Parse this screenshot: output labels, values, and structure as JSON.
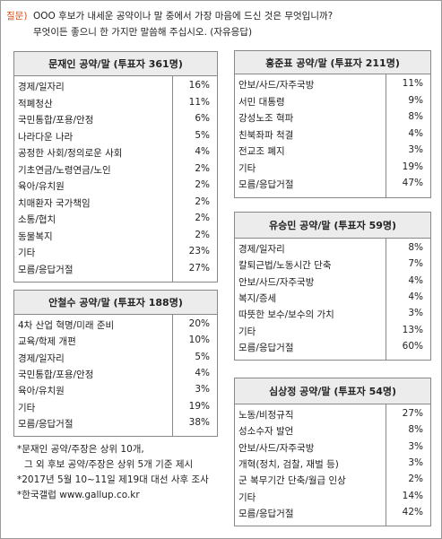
{
  "question": {
    "label": "질문)",
    "lines": [
      "OOO 후보가 내세운 공약이나 말 중에서 가장 마음에 드신 것은 무엇입니까?",
      "무엇이든 좋으니 한 가지만 말씀해 주십시오. (자유응답)"
    ]
  },
  "tables": [
    {
      "title": "문재인 공약/말 (투표자 361명)",
      "rows": [
        [
          "경제/일자리",
          "16%"
        ],
        [
          "적폐청산",
          "11%"
        ],
        [
          "국민통합/포용/안정",
          "6%"
        ],
        [
          "나라다운 나라",
          "5%"
        ],
        [
          "공정한 사회/정의로운 사회",
          "4%"
        ],
        [
          "기초연금/노령연금/노인",
          "2%"
        ],
        [
          "육아/유치원",
          "2%"
        ],
        [
          "치매환자 국가책임",
          "2%"
        ],
        [
          "소통/협치",
          "2%"
        ],
        [
          "동물복지",
          "2%"
        ],
        [
          "기타",
          "23%"
        ],
        [
          "모름/응답거절",
          "27%"
        ]
      ]
    },
    {
      "title": "안철수 공약/말 (투표자 188명)",
      "rows": [
        [
          "4차 산업 혁명/미래 준비",
          "20%"
        ],
        [
          "교육/학제 개편",
          "10%"
        ],
        [
          "경제/일자리",
          "5%"
        ],
        [
          "국민통합/포용/안정",
          "4%"
        ],
        [
          "육아/유치원",
          "3%"
        ],
        [
          "기타",
          "19%"
        ],
        [
          "모름/응답거절",
          "38%"
        ]
      ]
    },
    {
      "title": "홍준표 공약/말 (투표자 211명)",
      "rows": [
        [
          "안보/사드/자주국방",
          "11%"
        ],
        [
          "서민 대통령",
          "9%"
        ],
        [
          "강성노조 혁파",
          "8%"
        ],
        [
          "친북좌파 척결",
          "4%"
        ],
        [
          "전교조 폐지",
          "3%"
        ],
        [
          "기타",
          "19%"
        ],
        [
          "모름/응답거절",
          "47%"
        ]
      ]
    },
    {
      "title": "유승민 공약/말 (투표자 59명)",
      "rows": [
        [
          "경제/일자리",
          "8%"
        ],
        [
          "칼퇴근법/노동시간 단축",
          "7%"
        ],
        [
          "안보/사드/자주국방",
          "4%"
        ],
        [
          "복지/증세",
          "4%"
        ],
        [
          "따뜻한 보수/보수의 가치",
          "3%"
        ],
        [
          "기타",
          "13%"
        ],
        [
          "모름/응답거절",
          "60%"
        ]
      ]
    },
    {
      "title": "심상정 공약/말 (투표자 54명)",
      "rows": [
        [
          "노동/비정규직",
          "27%"
        ],
        [
          "성소수자 발언",
          "8%"
        ],
        [
          "안보/사드/자주국방",
          "3%"
        ],
        [
          "개혁(정치, 검찰, 재벌 등)",
          "3%"
        ],
        [
          "군 복무기간 단축/월급 인상",
          "2%"
        ],
        [
          "기타",
          "14%"
        ],
        [
          "모름/응답거절",
          "42%"
        ]
      ]
    }
  ],
  "notes": [
    "*문재인 공약/주장은 상위 10개,",
    "그 외 후보 공약/주장은 상위 5개 기준 제시",
    "*2017년 5월 10~11일 제19대 대선 사후 조사",
    "*한국갤럽 www.gallup.co.kr"
  ]
}
